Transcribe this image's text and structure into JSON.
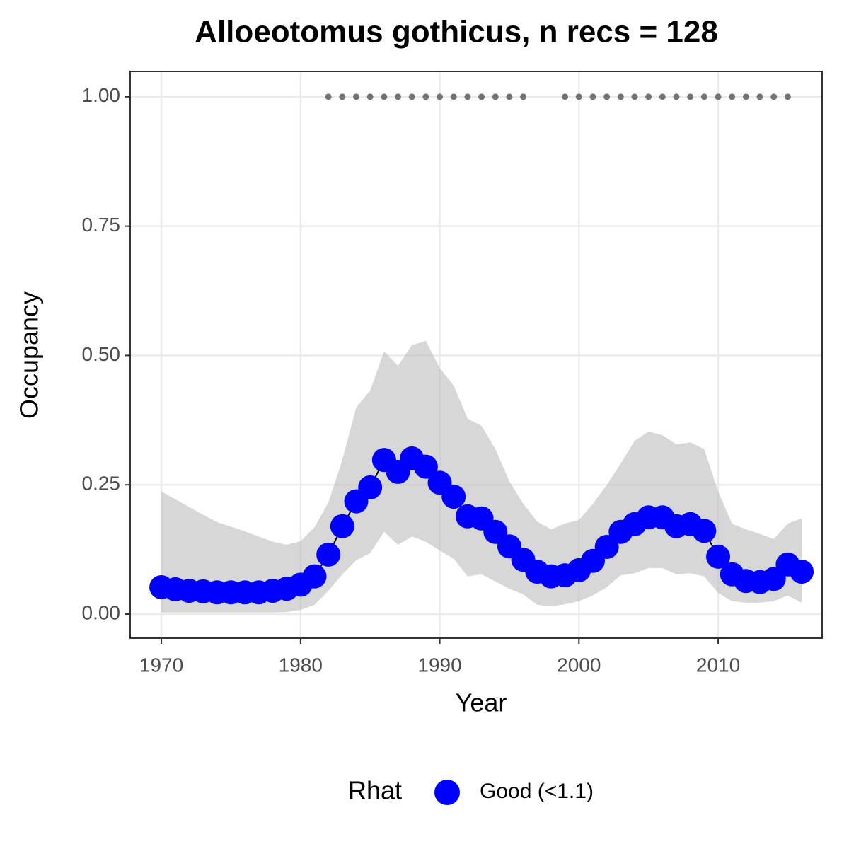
{
  "chart_data": {
    "type": "line",
    "title": "Alloeotomus gothicus, n recs = 128",
    "x_label": "Year",
    "y_label": "Occupancy",
    "legend_title": "Rhat",
    "xlim": [
      1967.76,
      2017.47
    ],
    "ylim": [
      -0.0465,
      1.049
    ],
    "xticks": [
      1970,
      1980,
      1990,
      2000,
      2010
    ],
    "yticks": [
      {
        "value": 0,
        "label": "0.00"
      },
      {
        "value": 0.25,
        "label": "0.25"
      },
      {
        "value": 0.5,
        "label": "0.50"
      },
      {
        "value": 0.75,
        "label": "0.75"
      },
      {
        "value": 1,
        "label": "1.00"
      }
    ],
    "grid": true,
    "legend_position": "bottom",
    "series": [
      {
        "name": "Good (<1.1)",
        "color": "#0000ff",
        "ribbon_color": "#bdbdbd",
        "x": [
          1970,
          1971,
          1972,
          1973,
          1974,
          1975,
          1976,
          1977,
          1978,
          1979,
          1980,
          1981,
          1982,
          1983,
          1984,
          1985,
          1986,
          1987,
          1988,
          1989,
          1990,
          1991,
          1992,
          1993,
          1994,
          1995,
          1996,
          1997,
          1998,
          1999,
          2000,
          2001,
          2002,
          2003,
          2004,
          2005,
          2006,
          2007,
          2008,
          2009,
          2010,
          2011,
          2012,
          2013,
          2014,
          2015,
          2016
        ],
        "values": [
          0.052,
          0.048,
          0.045,
          0.044,
          0.042,
          0.042,
          0.042,
          0.042,
          0.045,
          0.049,
          0.057,
          0.073,
          0.115,
          0.17,
          0.218,
          0.245,
          0.298,
          0.275,
          0.301,
          0.285,
          0.254,
          0.227,
          0.189,
          0.185,
          0.159,
          0.131,
          0.105,
          0.082,
          0.073,
          0.075,
          0.085,
          0.103,
          0.13,
          0.159,
          0.174,
          0.187,
          0.187,
          0.17,
          0.174,
          0.161,
          0.111,
          0.077,
          0.064,
          0.062,
          0.068,
          0.096,
          0.082
        ],
        "upper": [
          0.237,
          0.222,
          0.207,
          0.192,
          0.178,
          0.169,
          0.16,
          0.15,
          0.14,
          0.134,
          0.141,
          0.168,
          0.216,
          0.298,
          0.4,
          0.432,
          0.508,
          0.48,
          0.52,
          0.528,
          0.476,
          0.442,
          0.378,
          0.364,
          0.319,
          0.257,
          0.213,
          0.179,
          0.164,
          0.175,
          0.182,
          0.213,
          0.25,
          0.291,
          0.335,
          0.353,
          0.346,
          0.328,
          0.332,
          0.319,
          0.237,
          0.175,
          0.164,
          0.155,
          0.145,
          0.175,
          0.185
        ],
        "lower": [
          0.003,
          0.003,
          0.003,
          0.003,
          0.003,
          0.003,
          0.003,
          0.003,
          0.003,
          0.004,
          0.008,
          0.018,
          0.045,
          0.077,
          0.104,
          0.118,
          0.159,
          0.134,
          0.15,
          0.14,
          0.123,
          0.107,
          0.073,
          0.077,
          0.063,
          0.049,
          0.038,
          0.018,
          0.015,
          0.019,
          0.025,
          0.036,
          0.052,
          0.075,
          0.079,
          0.089,
          0.089,
          0.077,
          0.079,
          0.073,
          0.041,
          0.025,
          0.022,
          0.022,
          0.025,
          0.036,
          0.022
        ]
      }
    ],
    "records": {
      "color": "#737373",
      "x": [
        1982,
        1983,
        1984,
        1985,
        1986,
        1987,
        1988,
        1989,
        1990,
        1991,
        1992,
        1993,
        1994,
        1995,
        1996,
        1999,
        2000,
        2001,
        2002,
        2003,
        2004,
        2005,
        2006,
        2007,
        2008,
        2009,
        2010,
        2011,
        2012,
        2013,
        2014,
        2015
      ],
      "values": [
        1,
        1,
        1,
        1,
        1,
        1,
        1,
        1,
        1,
        1,
        1,
        1,
        1,
        1,
        1,
        1,
        1,
        1,
        1,
        1,
        1,
        1,
        1,
        1,
        1,
        1,
        1,
        1,
        1,
        1,
        1,
        1
      ]
    }
  }
}
